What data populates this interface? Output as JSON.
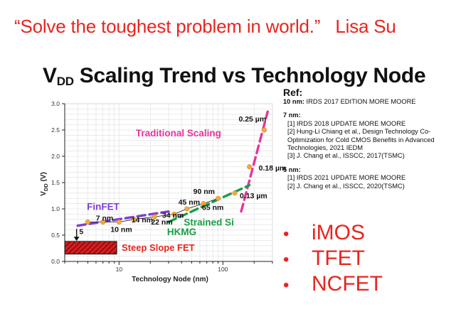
{
  "quote": {
    "text": "“Solve the toughest problem in world.”",
    "author": "Lisa Su"
  },
  "title": {
    "main": "V",
    "sub": "DD",
    "rest": " Scaling Trend vs Technology Node"
  },
  "chart_data": {
    "type": "line",
    "title": "",
    "xlabel": "Technology Node (nm)",
    "ylabel": "V",
    "ylabel_sub": "DD",
    "ylabel_unit": " (V)",
    "xscale": "log",
    "xlim": [
      3,
      300
    ],
    "ylim": [
      0,
      3.0
    ],
    "yticks": [
      "0.0",
      "0.5",
      "1.0",
      "1.5",
      "2.0",
      "2.5",
      "3.0"
    ],
    "xticks": [
      {
        "value": 10,
        "label": "10"
      },
      {
        "value": 100,
        "label": "100"
      }
    ],
    "grid": true,
    "points": [
      {
        "node": 250,
        "vdd": 2.5,
        "label": "0.25 µm"
      },
      {
        "node": 180,
        "vdd": 1.8,
        "label": "0.18 µm"
      },
      {
        "node": 130,
        "vdd": 1.3,
        "label": "0.13 µm"
      },
      {
        "node": 90,
        "vdd": 1.2,
        "label": "90 nm"
      },
      {
        "node": 65,
        "vdd": 1.1,
        "label": "65 nm"
      },
      {
        "node": 45,
        "vdd": 1.0,
        "label": "45 nm"
      },
      {
        "node": 34,
        "vdd": 0.9,
        "label": "34 nm"
      },
      {
        "node": 22,
        "vdd": 0.85,
        "label": "22 nm"
      },
      {
        "node": 14,
        "vdd": 0.8,
        "label": "14 nm"
      },
      {
        "node": 10,
        "vdd": 0.75,
        "label": "10 nm"
      },
      {
        "node": 7,
        "vdd": 0.75,
        "label": "7 nm"
      },
      {
        "node": 5,
        "vdd": 0.75,
        "label": "5"
      }
    ],
    "trend_segments": [
      {
        "name": "Traditional Scaling",
        "color": "#e8349b",
        "from": [
          150,
          0.95
        ],
        "to": [
          270,
          2.85
        ]
      },
      {
        "name": "HKMG",
        "color": "#1a9e45",
        "from": [
          30,
          0.75
        ],
        "to": [
          180,
          1.45
        ]
      },
      {
        "name": "FinFET",
        "color": "#7b3fd0",
        "from": [
          4,
          0.68
        ],
        "to": [
          30,
          0.95
        ]
      }
    ],
    "annotations": [
      {
        "text": "Traditional Scaling",
        "color": "#e8349b"
      },
      {
        "text": "FinFET",
        "color": "#7b3fd0"
      },
      {
        "text": "Strained Si",
        "color": "#1a9e45"
      },
      {
        "text": "HKMG",
        "color": "#1a9e45"
      },
      {
        "text": "Steep Slope FET",
        "color": "#e8251f"
      }
    ],
    "marker_color": "#f4a93a"
  },
  "refs": {
    "heading": "Ref:",
    "blocks": [
      {
        "node": "10 nm:",
        "first": " IRDS 2017 EDITION MORE MOORE",
        "lines": []
      },
      {
        "node": "7 nm:",
        "first": "",
        "lines": [
          "[1] IRDS 2018 UPDATE MORE MOORE",
          "[2] Hung-Li Chiang et al., Design Technology Co-Optimization for Cold CMOS Benefits in Advanced Technologies, 2021 IEDM",
          "[3] J. Chang et al., ISSCC, 2017(TSMC)"
        ]
      },
      {
        "node": "5 nm:",
        "first": "",
        "lines": [
          "[1] IRDS 2021 UPDATE MORE MOORE",
          "[2] J. Chang et al., ISSCC, 2020(TSMC)"
        ]
      }
    ]
  },
  "bullets": [
    {
      "marker": "•",
      "text": "iMOS"
    },
    {
      "marker": "•",
      "text": "TFET"
    },
    {
      "marker": "•",
      "text": "NCFET"
    }
  ]
}
